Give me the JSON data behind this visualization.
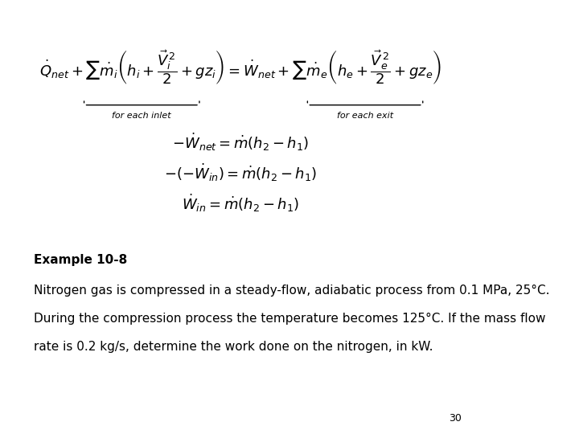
{
  "title": "",
  "background_color": "#ffffff",
  "page_number": "30",
  "example_label": "Example 10-8",
  "paragraph_line1": "Nitrogen gas is compressed in a steady-flow, adiabatic process from 0.1 MPa, 25°C.",
  "paragraph_line2": "During the compression process the temperature becomes 125°C. If the mass flow",
  "paragraph_line3": "rate is 0.2 kg/s, determine the work done on the nitrogen, in kW.",
  "label_inlet": "for each inlet",
  "label_exit": "for each exit",
  "text_color": "#000000",
  "font_size_eq": 13,
  "font_size_label": 8,
  "font_size_text": 11,
  "font_size_example": 11,
  "font_size_page": 9
}
